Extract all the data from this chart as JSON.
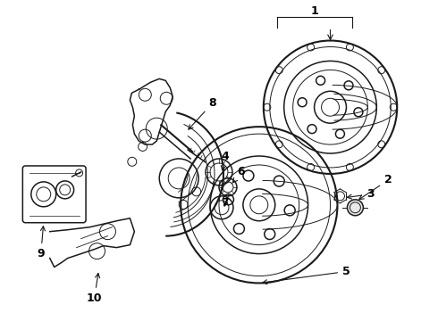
{
  "background_color": "#ffffff",
  "line_color": "#1a1a1a",
  "label_color": "#000000",
  "figsize": [
    4.9,
    3.6
  ],
  "dpi": 100,
  "lw_main": 1.1,
  "lw_thin": 0.7,
  "lw_thick": 1.5
}
